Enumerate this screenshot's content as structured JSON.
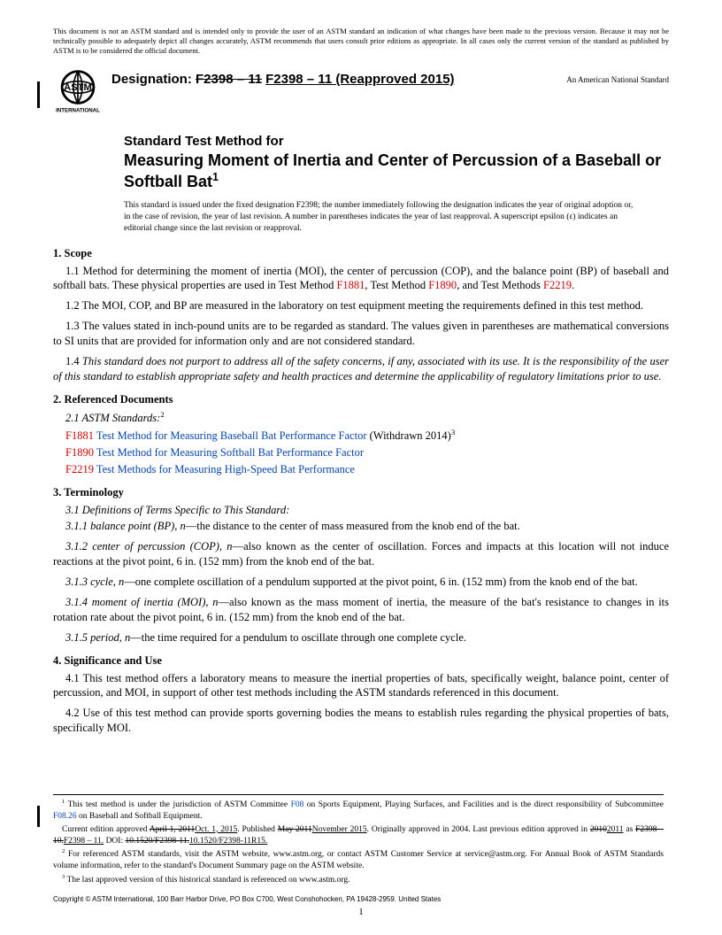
{
  "disclaimer": "This document is not an ASTM standard and is intended only to provide the user of an ASTM standard an indication of what changes have been made to the previous version. Because it may not be technically possible to adequately depict all changes accurately, ASTM recommends that users consult prior editions as appropriate. In all cases only the current version of the standard as published by ASTM is to be considered the official document.",
  "designation_label": "Designation: ",
  "designation_old": "F2398 – 11",
  "designation_new": "F2398 – 11 (Reapproved 2015)",
  "ans": "An American National Standard",
  "title_lead": "Standard Test Method for",
  "title_main": "Measuring Moment of Inertia and Center of Percussion of a Baseball or Softball Bat",
  "title_sup": "1",
  "issuance": "This standard is issued under the fixed designation F2398; the number immediately following the designation indicates the year of original adoption or, in the case of revision, the year of last revision. A number in parentheses indicates the year of last reapproval. A superscript epsilon (ε) indicates an editorial change since the last revision or reapproval.",
  "s1_head": "1. Scope",
  "s1_1a": "1.1  Method for determining the moment of inertia (MOI), the center of percussion (COP), and the balance point (BP) of baseball and softball bats. These physical properties are used in Test Method ",
  "s1_1_r1": "F1881",
  "s1_1b": ", Test Method ",
  "s1_1_r2": "F1890",
  "s1_1c": ", and Test Methods ",
  "s1_1_r3": "F2219",
  "s1_1d": ".",
  "s1_2": "1.2 The MOI, COP, and BP are measured in the laboratory on test equipment meeting the requirements defined in this test method.",
  "s1_3": "1.3 The values stated in inch-pound units are to be regarded as standard. The values given in parentheses are mathematical conversions to SI units that are provided for information only and are not considered standard.",
  "s1_4": "1.4 This standard does not purport to address all of the safety concerns, if any, associated with its use. It is the responsibility of the user of this standard to establish appropriate safety and health practices and determine the applicability of regulatory limitations prior to use.",
  "s2_head": "2. Referenced Documents",
  "s2_1": "2.1 ASTM Standards:",
  "s2_1_sup": "2",
  "s2_r1_code": "F1881",
  "s2_r1_title": "Test Method for Measuring Baseball Bat Performance Factor",
  "s2_r1_tail": " (Withdrawn 2014)",
  "s2_r1_sup": "3",
  "s2_r2_code": "F1890",
  "s2_r2_title": "Test Method for Measuring Softball Bat Performance Factor",
  "s2_r3_code": "F2219",
  "s2_r3_title": "Test Methods for Measuring High-Speed Bat Performance",
  "s3_head": "3. Terminology",
  "s3_1": "3.1 Definitions of Terms Specific to This Standard:",
  "s3_1_1_term": "3.1.1 balance point (BP), n",
  "s3_1_1_def": "—the distance to the center of mass measured from the knob end of the bat.",
  "s3_1_2_term": "3.1.2 center of percussion (COP), n",
  "s3_1_2_def": "—also known as the center of oscillation. Forces and impacts at this location will not induce reactions at the pivot point, 6 in. (152 mm) from the knob end of the bat.",
  "s3_1_3_term": "3.1.3 cycle, n",
  "s3_1_3_def": "—one complete oscillation of a pendulum supported at the pivot point, 6 in. (152 mm) from the knob end of the bat.",
  "s3_1_4_term": "3.1.4 moment of inertia (MOI), n",
  "s3_1_4_def": "—also known as the mass moment of inertia, the measure of the bat's resistance to changes in its rotation rate about the pivot point, 6 in. (152 mm) from the knob end of the bat.",
  "s3_1_5_term": "3.1.5 period, n",
  "s3_1_5_def": "—the time required for a pendulum to oscillate through one complete cycle.",
  "s4_head": "4. Significance and Use",
  "s4_1": "4.1 This test method offers a laboratory means to measure the inertial properties of bats, specifically weight, balance point, center of percussion, and MOI, in support of other test methods including the ASTM standards referenced in this document.",
  "s4_2": "4.2 Use of this test method can provide sports governing bodies the means to establish rules regarding the physical properties of bats, specifically MOI.",
  "fn1_sup": "1",
  "fn1a": " This test method is under the jurisdiction of ASTM Committee ",
  "fn1_l1": "F08",
  "fn1b": " on Sports Equipment, Playing Surfaces, and Facilities and is the direct responsibility of Subcommittee ",
  "fn1_l2": "F08.26",
  "fn1c": " on Baseball and Softball Equipment.",
  "fn1_line2a": "Current edition approved ",
  "fn1_old_date": "April 1, 2011",
  "fn1_new_date": "Oct. 1, 2015",
  "fn1_line2b": ". Published ",
  "fn1_old_pub": "May 2011",
  "fn1_new_pub": "November 2015",
  "fn1_line2c": ". Originally approved in 2004. Last previous edition approved in ",
  "fn1_old_year": "2010",
  "fn1_new_year": "2011",
  "fn1_line2d": " as ",
  "fn1_old_des": "F2398 – 10.",
  "fn1_new_des": "F2398 – 11.",
  "fn1_line2e": " DOI: ",
  "fn1_old_doi": "10.1520/F2398-11.",
  "fn1_new_doi": "10.1520/F2398-11R15.",
  "fn2_sup": "2",
  "fn2": " For referenced ASTM standards, visit the ASTM website, www.astm.org, or contact ASTM Customer Service at service@astm.org. For Annual Book of ASTM Standards volume information, refer to the standard's Document Summary page on the ASTM website.",
  "fn3_sup": "3",
  "fn3": " The last approved version of this historical standard is referenced on www.astm.org.",
  "copyright": "Copyright © ASTM International, 100 Barr Harbor Drive, PO Box C700, West Conshohocken, PA 19428-2959. United States",
  "page_number": "1",
  "logo_text_top": "ASTM",
  "logo_text_bottom": "INTERNATIONAL"
}
